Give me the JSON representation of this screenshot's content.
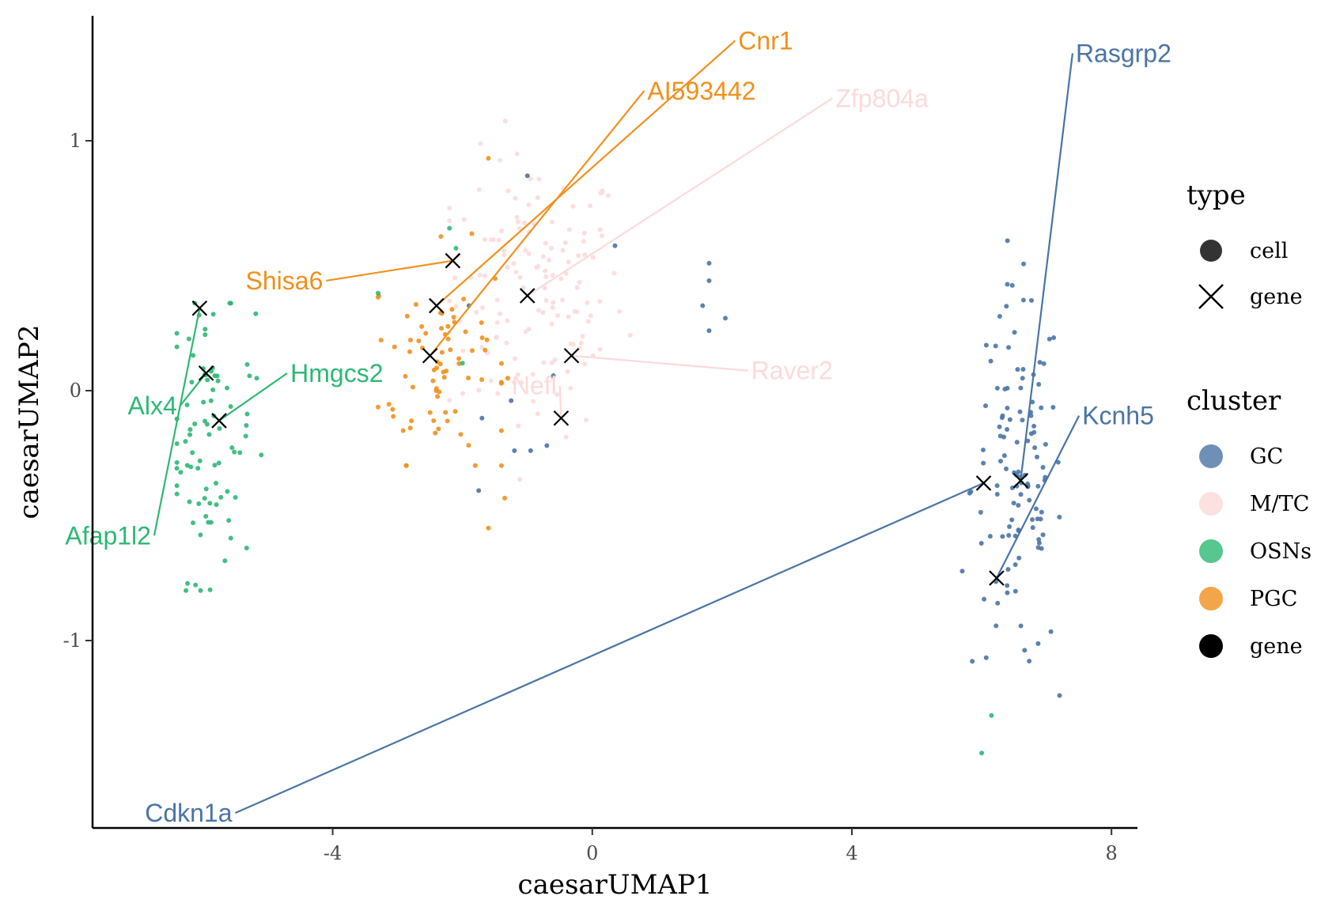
{
  "chart_data": {
    "type": "scatter",
    "xlabel": "caesarUMAP1",
    "ylabel": "caesarUMAP2",
    "xlim": [
      -7.7,
      8.4
    ],
    "ylim": [
      -1.75,
      1.5
    ],
    "x_ticks": [
      -4,
      0,
      4,
      8
    ],
    "x_tick_labels": [
      "-4",
      "0",
      "4",
      "8"
    ],
    "y_ticks": [
      -1,
      0,
      1
    ],
    "y_tick_labels": [
      "-1",
      "0",
      "1"
    ],
    "grid": false,
    "legend_position": "right",
    "clusters": [
      {
        "name": "GC",
        "color": "#4A74A5"
      },
      {
        "name": "M/TC",
        "color": "#FCDADA"
      },
      {
        "name": "OSNs",
        "color": "#2DB873"
      },
      {
        "name": "PGC",
        "color": "#F0901C"
      },
      {
        "name": "gene",
        "color": "#000000"
      }
    ],
    "legends": [
      {
        "title": "type",
        "entries": [
          {
            "label": "cell",
            "shape": "circle"
          },
          {
            "label": "gene",
            "shape": "cross"
          }
        ]
      },
      {
        "title": "cluster",
        "entries": [
          "GC",
          "M/TC",
          "OSNs",
          "PGC",
          "gene"
        ]
      }
    ],
    "genes": [
      {
        "name": "Rasgrp2",
        "cluster": "GC",
        "x": 6.6,
        "y": -0.36,
        "label_x": 7.4,
        "label_y": 1.35
      },
      {
        "name": "Cdkn1a",
        "cluster": "GC",
        "x": 6.03,
        "y": -0.37,
        "label_x": -5.5,
        "label_y": -1.69
      },
      {
        "name": "Kcnh5",
        "cluster": "GC",
        "x": 6.23,
        "y": -0.75,
        "label_x": 7.5,
        "label_y": -0.1
      },
      {
        "name": "Cnr1",
        "cluster": "PGC",
        "x": -2.4,
        "y": 0.34,
        "label_x": 2.2,
        "label_y": 1.4
      },
      {
        "name": "AI593442",
        "cluster": "PGC",
        "x": -2.5,
        "y": 0.14,
        "label_x": 0.8,
        "label_y": 1.2
      },
      {
        "name": "Shisa6",
        "cluster": "PGC",
        "x": -2.15,
        "y": 0.52,
        "label_x": -4.1,
        "label_y": 0.44
      },
      {
        "name": "Zfp804a",
        "cluster": "M/TC",
        "x": -1.0,
        "y": 0.38,
        "label_x": 3.7,
        "label_y": 1.17
      },
      {
        "name": "Raver2",
        "cluster": "M/TC",
        "x": -0.32,
        "y": 0.14,
        "label_x": 2.4,
        "label_y": 0.08
      },
      {
        "name": "Nefl",
        "cluster": "M/TC",
        "x": -0.48,
        "y": -0.11,
        "label_x": -0.5,
        "label_y": 0.02
      },
      {
        "name": "Hmgcs2",
        "cluster": "OSNs",
        "x": -5.75,
        "y": -0.12,
        "label_x": -4.7,
        "label_y": 0.07
      },
      {
        "name": "Alx4",
        "cluster": "OSNs",
        "x": -5.95,
        "y": 0.07,
        "label_x": -6.35,
        "label_y": -0.06
      },
      {
        "name": "Afap1l2",
        "cluster": "OSNs",
        "x": -6.05,
        "y": 0.33,
        "label_x": -6.75,
        "label_y": -0.58
      }
    ],
    "cell_groups": [
      {
        "cluster": "OSNs",
        "n": 85,
        "cx": -5.9,
        "cy": -0.18,
        "sx": 0.35,
        "sy": 0.28,
        "clip": [
          -6.4,
          -5.1,
          -0.8,
          0.35
        ],
        "extra": [
          [
            6.0,
            -1.45
          ],
          [
            6.15,
            -1.3
          ],
          [
            -3.3,
            0.39
          ],
          [
            -2.1,
            0.57
          ],
          [
            -2.2,
            0.65
          ],
          [
            -2.0,
            0.11
          ]
        ]
      },
      {
        "cluster": "PGC",
        "n": 75,
        "cx": -2.3,
        "cy": 0.12,
        "sx": 0.55,
        "sy": 0.22,
        "clip": [
          -3.3,
          -1.4,
          -0.3,
          0.7
        ],
        "extra": [
          [
            -1.6,
            0.93
          ],
          [
            -1.6,
            -0.55
          ],
          [
            -1.35,
            -0.43
          ],
          [
            -1.3,
            0.05
          ]
        ]
      },
      {
        "cluster": "M/TC",
        "n": 140,
        "cx": -0.9,
        "cy": 0.38,
        "sx": 0.7,
        "sy": 0.28,
        "clip": [
          -2.2,
          1.4,
          -0.5,
          1.2
        ],
        "extra": []
      },
      {
        "cluster": "GC",
        "n": 120,
        "cx": 6.55,
        "cy": -0.38,
        "sx": 0.35,
        "sy": 0.38,
        "clip": [
          5.7,
          7.2,
          -1.22,
          0.6
        ],
        "extra": [
          [
            -1.0,
            0.86
          ],
          [
            0.35,
            0.58
          ],
          [
            1.8,
            0.51
          ],
          [
            1.8,
            0.44
          ],
          [
            1.7,
            0.34
          ],
          [
            1.8,
            0.24
          ],
          [
            2.05,
            0.29
          ],
          [
            -1.9,
            0.34
          ],
          [
            -1.7,
            -0.11
          ],
          [
            -1.2,
            -0.24
          ],
          [
            -0.95,
            -0.24
          ],
          [
            -0.7,
            -0.22
          ],
          [
            -0.6,
            0.06
          ],
          [
            -1.25,
            -0.04
          ],
          [
            -1.75,
            -0.4
          ]
        ]
      }
    ]
  }
}
